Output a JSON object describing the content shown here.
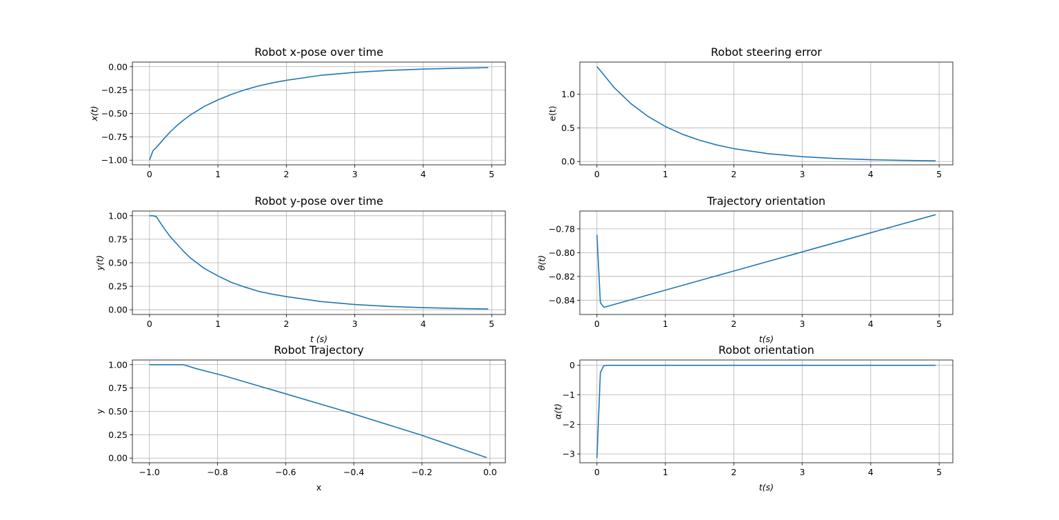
{
  "series_color": "#1f77b4",
  "grid_color": "#b0b0b0",
  "chart_data": [
    {
      "id": "x-pose",
      "type": "line",
      "title": "Robot x-pose over time",
      "xlabel": "",
      "ylabel": "x(t)",
      "label_style": "italic",
      "xlim": [
        -0.25,
        5.2
      ],
      "ylim": [
        -1.05,
        0.05
      ],
      "xticks": [
        0,
        1,
        2,
        3,
        4,
        5
      ],
      "xtick_labels": [
        "0",
        "1",
        "2",
        "3",
        "4",
        "5"
      ],
      "yticks": [
        -1.0,
        -0.75,
        -0.5,
        -0.25,
        0.0
      ],
      "ytick_labels": [
        "−1.00",
        "−0.75",
        "−0.50",
        "−0.25",
        "0.00"
      ],
      "grid": true,
      "series": [
        {
          "x": [
            0,
            0.05,
            0.1,
            0.2,
            0.3,
            0.4,
            0.5,
            0.6,
            0.8,
            1.0,
            1.2,
            1.4,
            1.6,
            1.8,
            2.0,
            2.5,
            3.0,
            3.5,
            4.0,
            4.5,
            4.95
          ],
          "values": [
            -1.0,
            -0.9,
            -0.865,
            -0.78,
            -0.7,
            -0.63,
            -0.57,
            -0.515,
            -0.425,
            -0.355,
            -0.295,
            -0.245,
            -0.205,
            -0.172,
            -0.145,
            -0.092,
            -0.06,
            -0.039,
            -0.025,
            -0.016,
            -0.01
          ]
        }
      ]
    },
    {
      "id": "steering-error",
      "type": "line",
      "title": "Robot steering error",
      "xlabel": "",
      "ylabel": "e(t)",
      "label_style": "normal",
      "xlim": [
        -0.25,
        5.2
      ],
      "ylim": [
        -0.05,
        1.48
      ],
      "xticks": [
        0,
        1,
        2,
        3,
        4,
        5
      ],
      "xtick_labels": [
        "0",
        "1",
        "2",
        "3",
        "4",
        "5"
      ],
      "yticks": [
        0.0,
        0.5,
        1.0
      ],
      "ytick_labels": [
        "0.0",
        "0.5",
        "1.0"
      ],
      "grid": true,
      "series": [
        {
          "x": [
            0,
            0.25,
            0.5,
            0.75,
            1.0,
            1.25,
            1.5,
            1.75,
            2.0,
            2.5,
            3.0,
            3.5,
            4.0,
            4.5,
            4.95
          ],
          "values": [
            1.414,
            1.102,
            0.858,
            0.668,
            0.52,
            0.405,
            0.316,
            0.246,
            0.191,
            0.116,
            0.071,
            0.043,
            0.026,
            0.016,
            0.01
          ]
        }
      ]
    },
    {
      "id": "y-pose",
      "type": "line",
      "title": "Robot y-pose over time",
      "xlabel": "t (s)",
      "ylabel": "y(t)",
      "label_style": "italic",
      "xlim": [
        -0.25,
        5.2
      ],
      "ylim": [
        -0.05,
        1.05
      ],
      "xticks": [
        0,
        1,
        2,
        3,
        4,
        5
      ],
      "xtick_labels": [
        "0",
        "1",
        "2",
        "3",
        "4",
        "5"
      ],
      "yticks": [
        0.0,
        0.25,
        0.5,
        0.75,
        1.0
      ],
      "ytick_labels": [
        "0.00",
        "0.25",
        "0.50",
        "0.75",
        "1.00"
      ],
      "grid": true,
      "series": [
        {
          "x": [
            0,
            0.05,
            0.1,
            0.2,
            0.3,
            0.4,
            0.5,
            0.6,
            0.8,
            1.0,
            1.2,
            1.4,
            1.6,
            1.8,
            2.0,
            2.5,
            3.0,
            3.5,
            4.0,
            4.5,
            4.95
          ],
          "values": [
            1.0,
            1.0,
            0.99,
            0.88,
            0.78,
            0.7,
            0.62,
            0.55,
            0.44,
            0.36,
            0.29,
            0.24,
            0.195,
            0.165,
            0.14,
            0.088,
            0.056,
            0.036,
            0.023,
            0.014,
            0.008
          ]
        }
      ]
    },
    {
      "id": "trajectory-orientation",
      "type": "line",
      "title": "Trajectory orientation",
      "xlabel": "t(s)",
      "ylabel": "θ(t)",
      "label_style": "italic",
      "xlim": [
        -0.25,
        5.2
      ],
      "ylim": [
        -0.852,
        -0.765
      ],
      "xticks": [
        0,
        1,
        2,
        3,
        4,
        5
      ],
      "xtick_labels": [
        "0",
        "1",
        "2",
        "3",
        "4",
        "5"
      ],
      "yticks": [
        -0.84,
        -0.82,
        -0.8,
        -0.78
      ],
      "ytick_labels": [
        "−0.84",
        "−0.82",
        "−0.80",
        "−0.78"
      ],
      "grid": true,
      "series": [
        {
          "x": [
            0,
            0.05,
            0.1,
            4.95
          ],
          "values": [
            -0.785,
            -0.842,
            -0.846,
            -0.768
          ]
        }
      ]
    },
    {
      "id": "trajectory",
      "type": "line",
      "title": "Robot Trajectory",
      "xlabel": "x",
      "ylabel": "y",
      "label_style": "normal",
      "xlim": [
        -1.05,
        0.045
      ],
      "ylim": [
        -0.05,
        1.05
      ],
      "xticks": [
        -1.0,
        -0.8,
        -0.6,
        -0.4,
        -0.2,
        0.0
      ],
      "xtick_labels": [
        "−1.0",
        "−0.8",
        "−0.6",
        "−0.4",
        "−0.2",
        "0.0"
      ],
      "yticks": [
        0.0,
        0.25,
        0.5,
        0.75,
        1.0
      ],
      "ytick_labels": [
        "0.00",
        "0.25",
        "0.50",
        "0.75",
        "1.00"
      ],
      "grid": true,
      "series": [
        {
          "x": [
            -1.0,
            -0.9,
            -0.865,
            -0.78,
            -0.63,
            -0.425,
            -0.205,
            -0.01
          ],
          "values": [
            1.0,
            1.0,
            0.96,
            0.88,
            0.72,
            0.5,
            0.25,
            0.005
          ]
        }
      ]
    },
    {
      "id": "robot-orientation",
      "type": "line",
      "title": "Robot orientation",
      "xlabel": "t(s)",
      "ylabel": "α(t)",
      "label_style": "italic",
      "xlim": [
        -0.25,
        5.2
      ],
      "ylim": [
        -3.3,
        0.18
      ],
      "xticks": [
        0,
        1,
        2,
        3,
        4,
        5
      ],
      "xtick_labels": [
        "0",
        "1",
        "2",
        "3",
        "4",
        "5"
      ],
      "yticks": [
        -3,
        -2,
        -1,
        0
      ],
      "ytick_labels": [
        "−3",
        "−2",
        "−1",
        "0"
      ],
      "grid": true,
      "series": [
        {
          "x": [
            0,
            0.05,
            0.1,
            0.15,
            4.95
          ],
          "values": [
            -3.14,
            -0.25,
            -0.01,
            0.0,
            0.0
          ]
        }
      ]
    }
  ]
}
